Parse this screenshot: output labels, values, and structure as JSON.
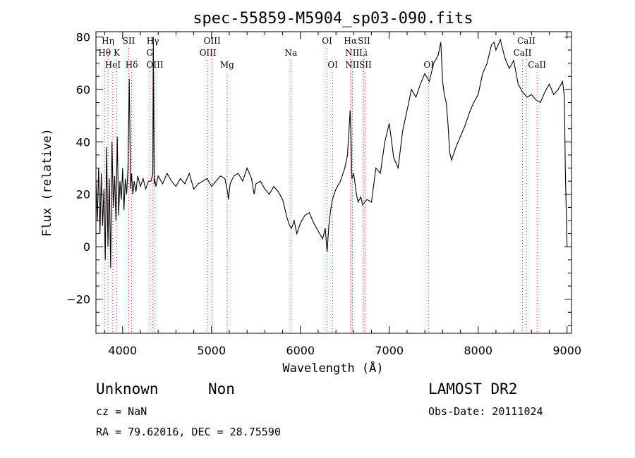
{
  "chart_data": {
    "type": "line",
    "title": "spec-55859-M5904_sp03-090.fits",
    "xlabel": "Wavelength (Å)",
    "ylabel": "Flux (relative)",
    "xlim": [
      3700,
      9050
    ],
    "ylim": [
      -33,
      82
    ],
    "xticks": [
      4000,
      5000,
      6000,
      7000,
      8000,
      9000
    ],
    "yticks": [
      -20,
      0,
      20,
      40,
      60,
      80
    ],
    "grid": false,
    "series": [
      {
        "x": [
          3700,
          3715,
          3730,
          3745,
          3760,
          3775,
          3790,
          3805,
          3820,
          3835,
          3850,
          3865,
          3880,
          3895,
          3910,
          3925,
          3940,
          3955,
          3970,
          3985,
          4000,
          4015,
          4030,
          4045,
          4060,
          4075,
          4090,
          4101,
          4115,
          4130,
          4150,
          4170,
          4200,
          4230,
          4260,
          4290,
          4320,
          4340,
          4345,
          4355,
          4360,
          4375,
          4400,
          4450,
          4500,
          4550,
          4600,
          4650,
          4700,
          4750,
          4800,
          4850,
          4900,
          4950,
          5000,
          5050,
          5100,
          5150,
          5180,
          5190,
          5210,
          5250,
          5300,
          5350,
          5400,
          5450,
          5480,
          5500,
          5550,
          5600,
          5650,
          5700,
          5750,
          5800,
          5850,
          5880,
          5900,
          5930,
          5960,
          6000,
          6050,
          6100,
          6150,
          6200,
          6250,
          6280,
          6300,
          6320,
          6340,
          6360,
          6400,
          6450,
          6500,
          6530,
          6560,
          6570,
          6580,
          6600,
          6630,
          6650,
          6680,
          6700,
          6750,
          6800,
          6850,
          6900,
          6950,
          7000,
          7050,
          7100,
          7150,
          7200,
          7250,
          7300,
          7350,
          7400,
          7450,
          7500,
          7550,
          7580,
          7600,
          7620,
          7640,
          7660,
          7680,
          7700,
          7750,
          7800,
          7850,
          7900,
          7950,
          8000,
          8050,
          8100,
          8150,
          8180,
          8200,
          8250,
          8300,
          8350,
          8400,
          8450,
          8500,
          8550,
          8600,
          8650,
          8700,
          8750,
          8800,
          8850,
          8900,
          8950,
          8970,
          8980,
          9000
        ],
        "y": [
          26,
          10,
          30,
          5,
          28,
          8,
          22,
          -5,
          38,
          0,
          26,
          -8,
          40,
          15,
          27,
          10,
          42,
          12,
          25,
          18,
          30,
          14,
          26,
          20,
          30,
          64,
          22,
          28,
          20,
          25,
          21,
          27,
          23,
          26,
          22,
          25,
          25,
          28,
          80,
          24,
          26,
          23,
          27,
          24,
          28,
          25,
          23,
          26,
          24,
          28,
          22,
          24,
          25,
          26,
          23,
          25,
          27,
          26,
          21,
          18,
          24,
          27,
          28,
          25,
          30,
          26,
          20,
          24,
          25,
          22,
          20,
          23,
          21,
          18,
          11,
          8,
          7,
          10,
          5,
          9,
          12,
          13,
          9,
          6,
          3,
          7,
          -2,
          8,
          14,
          18,
          22,
          25,
          30,
          35,
          52,
          40,
          26,
          28,
          20,
          17,
          19,
          16,
          18,
          17,
          30,
          28,
          40,
          47,
          34,
          30,
          44,
          52,
          60,
          57,
          62,
          66,
          63,
          70,
          73,
          78,
          63,
          58,
          55,
          47,
          36,
          33,
          38,
          42,
          46,
          51,
          55,
          58,
          66,
          70,
          77,
          78,
          75,
          79,
          72,
          68,
          71,
          62,
          59,
          57,
          58,
          56,
          55,
          59,
          62,
          58,
          60,
          63,
          57,
          30,
          0
        ]
      }
    ],
    "annotations": [
      {
        "label": "Hη",
        "x": 3835,
        "row": 1
      },
      {
        "label": "Hθ",
        "x": 3797,
        "row": 2
      },
      {
        "label": "K",
        "x": 3934,
        "row": 2
      },
      {
        "label": "HeI",
        "x": 3889,
        "row": 3
      },
      {
        "label": "SII",
        "x": 4069,
        "row": 1
      },
      {
        "label": "Hδ",
        "x": 4102,
        "row": 3
      },
      {
        "label": "Hγ",
        "x": 4340,
        "row": 1
      },
      {
        "label": "G",
        "x": 4305,
        "row": 2
      },
      {
        "label": "OIII",
        "x": 4363,
        "row": 3
      },
      {
        "label": "OIII",
        "x": 5007,
        "row": 1
      },
      {
        "label": "OIII",
        "x": 4959,
        "row": 2
      },
      {
        "label": "Mg",
        "x": 5175,
        "row": 3
      },
      {
        "label": "Na",
        "x": 5893,
        "row": 2
      },
      {
        "label": "OI",
        "x": 6300,
        "row": 1
      },
      {
        "label": "OI",
        "x": 6364,
        "row": 3
      },
      {
        "label": "Hα",
        "x": 6563,
        "row": 1
      },
      {
        "label": "SII",
        "x": 6716,
        "row": 1
      },
      {
        "label": "NII",
        "x": 6583,
        "row": 2
      },
      {
        "label": "Li",
        "x": 6708,
        "row": 2
      },
      {
        "label": "NII",
        "x": 6583,
        "row": 3
      },
      {
        "label": "SII",
        "x": 6731,
        "row": 3
      },
      {
        "label": "OI",
        "x": 7444,
        "row": 3
      },
      {
        "label": "CaII",
        "x": 8542,
        "row": 1
      },
      {
        "label": "CaII",
        "x": 8498,
        "row": 2
      },
      {
        "label": "CaII",
        "x": 8662,
        "row": 3
      }
    ]
  },
  "info": {
    "class_label": "Unknown",
    "subclass_label": "Non",
    "survey": "LAMOST DR2",
    "cz": "cz = NaN",
    "obs_date": "Obs-Date: 20111024",
    "radec": "RA =  79.62016, DEC =  28.75590"
  },
  "colors": {
    "spectrum": "#000000",
    "line_markers": "#d04040"
  }
}
